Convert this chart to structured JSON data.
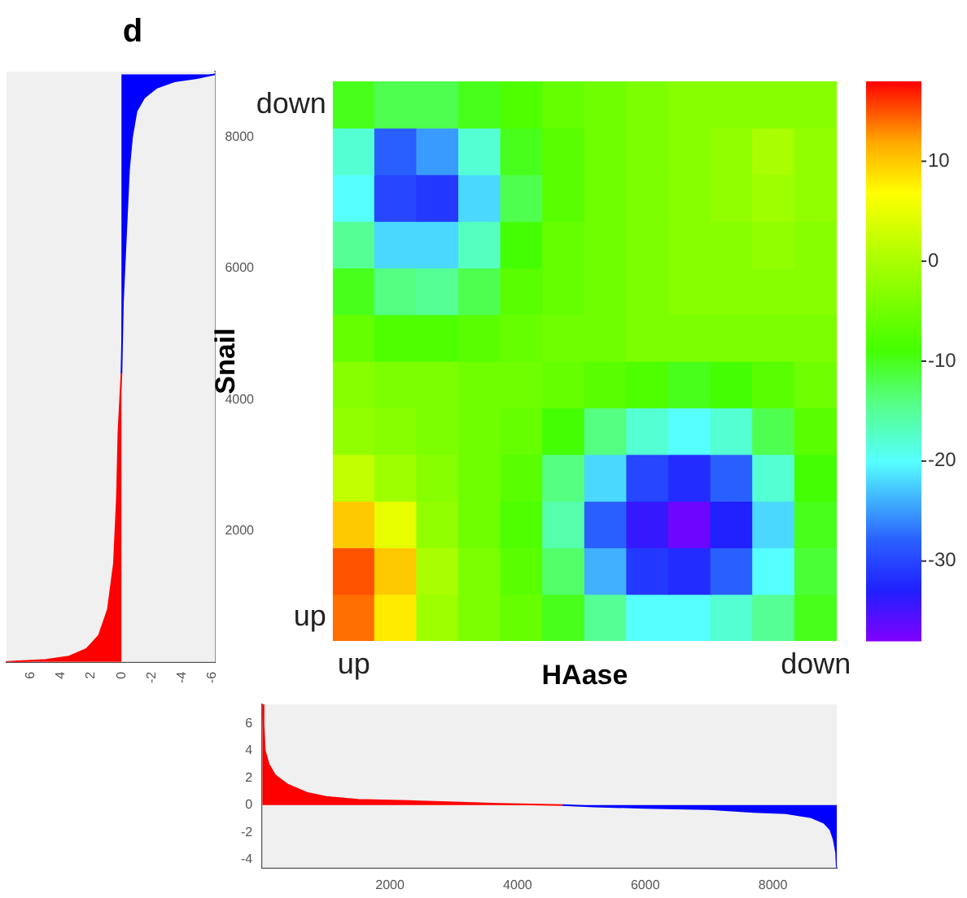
{
  "chart_data": [
    {
      "type": "area",
      "title": "d",
      "orientation": "horizontal",
      "xlim": [
        7.6,
        -6.2
      ],
      "xticks": [
        6,
        4,
        2,
        0,
        -2,
        -4,
        -6
      ],
      "ylim": [
        0,
        9000
      ],
      "yticks": [
        2000,
        4000,
        6000,
        8000
      ],
      "series": [
        {
          "color": "#ff0000",
          "x": [
            0,
            30,
            80,
            200,
            400,
            800,
            1500,
            2500,
            3500,
            4400
          ],
          "values": [
            7.6,
            5,
            3.5,
            2.3,
            1.5,
            0.9,
            0.5,
            0.3,
            0.2,
            0
          ]
        },
        {
          "color": "#0000ff",
          "x": [
            4400,
            5500,
            6500,
            7500,
            8000,
            8400,
            8600,
            8750,
            8850,
            8900,
            8960
          ],
          "values": [
            0,
            -0.1,
            -0.3,
            -0.5,
            -0.7,
            -1,
            -1.5,
            -2.3,
            -3.5,
            -5,
            -6.2
          ]
        }
      ]
    },
    {
      "type": "heatmap",
      "xlabel": "HAase",
      "ylabel": "Snail",
      "categories": [
        "up",
        null,
        null,
        null,
        null,
        null,
        null,
        null,
        null,
        null,
        null,
        "down"
      ],
      "y_categories": [
        "down",
        null,
        null,
        null,
        null,
        null,
        null,
        null,
        null,
        null,
        null,
        "up"
      ],
      "clim": [
        -38,
        18
      ],
      "cticks": [
        -30,
        -20,
        -10,
        0,
        10
      ],
      "cells": [
        [
          -10,
          -12,
          -12,
          -10,
          -8,
          -6,
          -5,
          -4,
          -3,
          -3,
          -3,
          -3
        ],
        [
          -18,
          -28,
          -25,
          -18,
          -10,
          -7,
          -5,
          -4,
          -3,
          -2,
          0,
          -2
        ],
        [
          -20,
          -30,
          -31,
          -22,
          -12,
          -7,
          -5,
          -4,
          -3,
          -2,
          -1,
          -2
        ],
        [
          -15,
          -22,
          -22,
          -17,
          -9,
          -6,
          -5,
          -4,
          -3,
          -3,
          -2,
          -3
        ],
        [
          -10,
          -14,
          -15,
          -12,
          -7,
          -6,
          -5,
          -4,
          -3,
          -3,
          -3,
          -3
        ],
        [
          -6,
          -8,
          -8,
          -7,
          -6,
          -5,
          -5,
          -4,
          -4,
          -4,
          -4,
          -4
        ],
        [
          -3,
          -4,
          -4,
          -5,
          -5,
          -6,
          -7,
          -8,
          -10,
          -9,
          -7,
          -5
        ],
        [
          -2,
          -3,
          -4,
          -5,
          -6,
          -9,
          -14,
          -18,
          -20,
          -18,
          -12,
          -7
        ],
        [
          2,
          -1,
          -3,
          -5,
          -7,
          -14,
          -22,
          -30,
          -32,
          -28,
          -18,
          -9
        ],
        [
          10,
          5,
          -2,
          -5,
          -8,
          -16,
          -28,
          -34,
          -37,
          -33,
          -22,
          -10
        ],
        [
          15,
          10,
          0,
          -4,
          -7,
          -13,
          -24,
          -31,
          -32,
          -28,
          -20,
          -11
        ],
        [
          14,
          8,
          -1,
          -4,
          -6,
          -10,
          -15,
          -20,
          -20,
          -18,
          -15,
          -10
        ]
      ]
    },
    {
      "type": "area",
      "xlim": [
        0,
        9000
      ],
      "xticks": [
        2000,
        4000,
        6000,
        8000
      ],
      "ylim": [
        -4.6,
        7.4
      ],
      "yticks": [
        -4,
        -2,
        0,
        2,
        4,
        6
      ],
      "series": [
        {
          "color": "#ff0000",
          "x": [
            0,
            20,
            40,
            100,
            200,
            400,
            700,
            1000,
            1500,
            2300,
            3000,
            3700,
            4700
          ],
          "values": [
            7.4,
            6,
            4,
            3,
            2.2,
            1.5,
            0.9,
            0.6,
            0.4,
            0.3,
            0.2,
            0.1,
            0
          ]
        },
        {
          "color": "#0000ff",
          "x": [
            4700,
            5200,
            6000,
            7000,
            7700,
            8200,
            8600,
            8800,
            8900,
            8950,
            8990,
            9000
          ],
          "values": [
            0,
            -0.1,
            -0.2,
            -0.3,
            -0.5,
            -0.6,
            -0.9,
            -1.3,
            -1.8,
            -2.5,
            -3.5,
            -4.6
          ]
        }
      ]
    }
  ]
}
